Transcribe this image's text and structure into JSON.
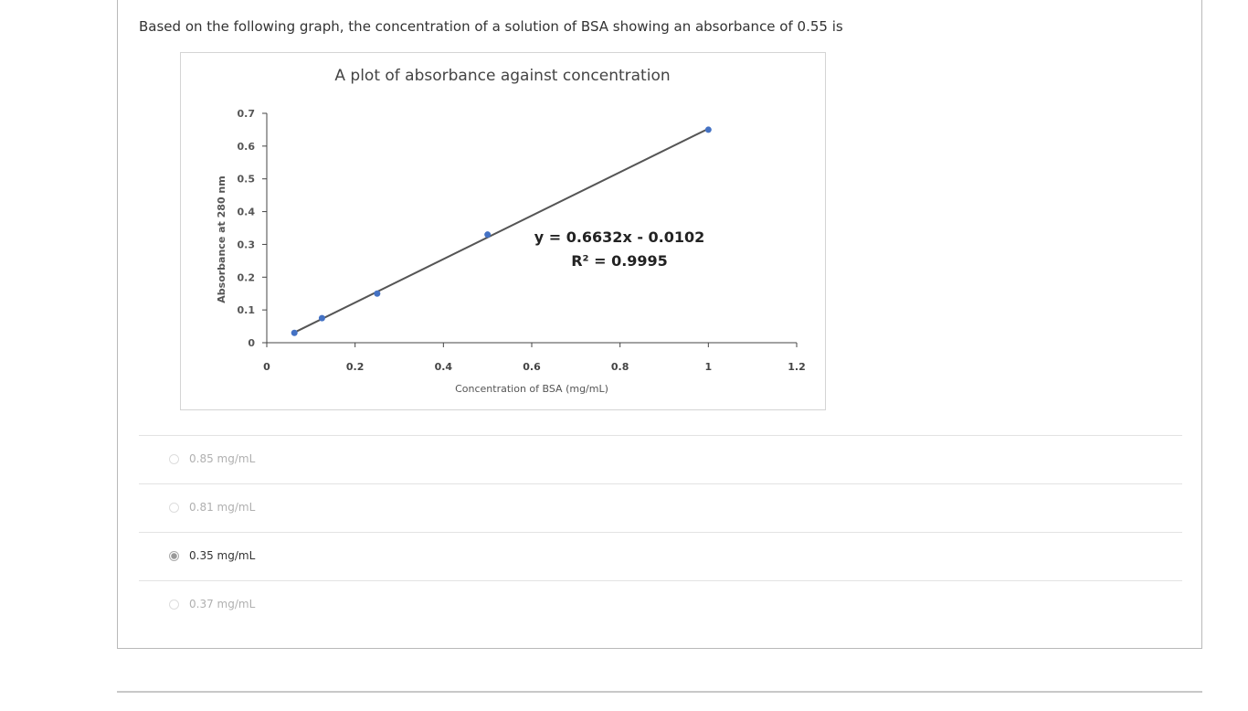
{
  "question": "Based on the following graph, the concentration of a solution of BSA showing an absorbance of 0.55 is",
  "chart_data": {
    "type": "scatter",
    "title": "A plot of absorbance against concentration",
    "x_label": "Concentration of BSA (mg/mL)",
    "y_label": "Absorbance at 280 nm",
    "x": [
      0.0625,
      0.125,
      0.25,
      0.5,
      1
    ],
    "values": [
      0.03,
      0.075,
      0.15,
      0.33,
      0.65
    ],
    "color": "#4472c4",
    "xlim": [
      0,
      1.2
    ],
    "ylim": [
      0,
      0.7
    ],
    "xticks": [
      0,
      0.2,
      0.4,
      0.6,
      0.8,
      1,
      1.2
    ],
    "yticks": [
      0,
      0.1,
      0.2,
      0.3,
      0.4,
      0.5,
      0.6,
      0.7
    ],
    "grid": false,
    "trendline": {
      "slope": 0.6632,
      "intercept": -0.0102,
      "color": "#555555"
    },
    "annotations": [
      "y = 0.6632x - 0.0102",
      "R² = 0.9995"
    ]
  },
  "options": [
    {
      "label": "0.85 mg/mL",
      "selected": false
    },
    {
      "label": "0.81 mg/mL",
      "selected": false
    },
    {
      "label": "0.35 mg/mL",
      "selected": true
    },
    {
      "label": "0.37 mg/mL",
      "selected": false
    }
  ]
}
